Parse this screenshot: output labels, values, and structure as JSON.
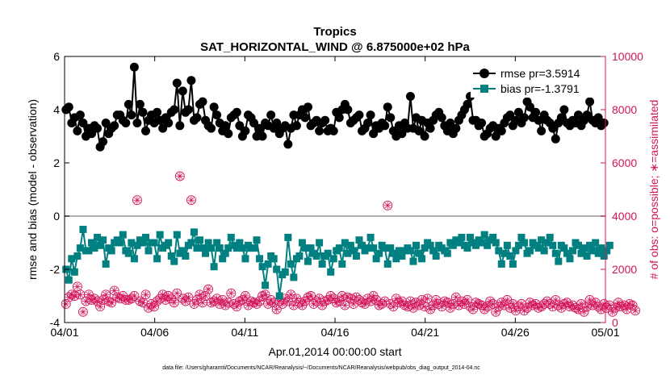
{
  "chart_data": {
    "type": "line",
    "title": "Tropics",
    "subtitle": "SAT_HORIZONTAL_WIND @ 6.875000e+02 hPa",
    "xlabel": "Apr.01,2014 00:00:00 start",
    "ylabel_left": "rmse and bias (model - observation)",
    "ylabel_right": "# of obs: o=possible; ∗=assimilated",
    "footnote": "data file: /Users/gharamti/Documents/NCAR/Reanalysis/~/Documents/NCAR/Reanalysis/webpub/obs_diag_output_2014-04.nc",
    "xlim": [
      0,
      30
    ],
    "ylim_left": [
      -4,
      6
    ],
    "ylim_right": [
      0,
      10000
    ],
    "x_ticks": [
      0,
      5,
      10,
      15,
      20,
      25,
      30
    ],
    "x_tick_labels": [
      "04/01",
      "04/06",
      "04/11",
      "04/16",
      "04/21",
      "04/26",
      "05/01"
    ],
    "y_ticks_left": [
      -4,
      -2,
      0,
      2,
      4,
      6
    ],
    "y_tick_labels_left": [
      "-4",
      "-2",
      "0",
      "2",
      "4",
      "6"
    ],
    "y_ticks_right": [
      0,
      2000,
      4000,
      6000,
      8000,
      10000
    ],
    "y_tick_labels_right": [
      "0",
      "2000",
      "4000",
      "6000",
      "8000",
      "10000"
    ],
    "zero_line": 0,
    "colors": {
      "rmse": "#000000",
      "bias": "#008080",
      "obs": "#d4145a",
      "zero": "#b0b0b0"
    },
    "series": [
      {
        "name": "rmse pr=3.5914",
        "axis": "left",
        "marker": "circle",
        "values": [
          4.0,
          4.1,
          3.5,
          3.7,
          3.2,
          3.8,
          3.5,
          3.0,
          3.3,
          3.1,
          3.4,
          3.3,
          2.6,
          2.8,
          3.5,
          3.1,
          3.3,
          3.4,
          3.8,
          3.8,
          3.6,
          3.5,
          4.2,
          3.8,
          5.6,
          3.5,
          4.2,
          3.9,
          3.2,
          3.6,
          3.8,
          3.5,
          3.9,
          3.6,
          3.3,
          3.7,
          3.5,
          3.9,
          4.0,
          5.0,
          3.4,
          4.7,
          3.9,
          4.0,
          5.1,
          3.6,
          3.7,
          4.2,
          4.3,
          3.6,
          3.4,
          3.3,
          4.1,
          3.8,
          3.5,
          3.2,
          3.4,
          3.1,
          3.7,
          3.8,
          3.9,
          3.4,
          3.0,
          3.2,
          3.8,
          3.7,
          3.5,
          3.0,
          3.3,
          3.0,
          3.5,
          3.4,
          3.8,
          3.3,
          3.5,
          3.1,
          3.3,
          3.4,
          2.7,
          3.3,
          3.8,
          3.4,
          3.8,
          4.0,
          3.7,
          4.1,
          3.4,
          3.5,
          3.6,
          3.2,
          3.5,
          3.6,
          3.2,
          3.3,
          3.2,
          3.9,
          3.7,
          4.0,
          4.2,
          4.0,
          3.5,
          3.6,
          3.7,
          3.8,
          3.2,
          3.3,
          3.5,
          3.8,
          3.1,
          3.4,
          3.3,
          3.5,
          3.4,
          4.1,
          3.7,
          3.2,
          3.0,
          3.4,
          3.1,
          3.5,
          3.3,
          4.5,
          3.3,
          3.7,
          3.2,
          3.6,
          3.0,
          3.5,
          3.3,
          3.6,
          3.8,
          3.9,
          3.7,
          3.4,
          3.2,
          3.5,
          3.1,
          3.3,
          3.6,
          3.8,
          4.0,
          4.2,
          4.5,
          3.6,
          3.6,
          3.4,
          3.5,
          3.0,
          3.1,
          3.3,
          3.4,
          3.0,
          3.3,
          3.2,
          3.5,
          3.7,
          3.8,
          3.4,
          3.6,
          3.9,
          3.5,
          3.7,
          4.3,
          4.1,
          3.7,
          3.9,
          3.6,
          3.2,
          3.8,
          3.6,
          3.5,
          3.3,
          2.9,
          3.5,
          3.7,
          4.0,
          3.5,
          3.4,
          3.6,
          3.5,
          3.8,
          3.4,
          3.6,
          3.8,
          4.3,
          3.6,
          3.5,
          3.7,
          3.4,
          3.5
        ]
      },
      {
        "name": "bias pr=-1.3791",
        "axis": "left",
        "marker": "square",
        "values": [
          -2.0,
          -2.4,
          -1.6,
          -2.1,
          -1.5,
          -1.2,
          -0.5,
          -1.3,
          -1.3,
          -1.0,
          -1.2,
          -0.8,
          -1.1,
          -0.9,
          -1.8,
          -1.2,
          -1.3,
          -1.0,
          -0.9,
          -1.0,
          -0.7,
          -1.3,
          -1.4,
          -1.0,
          -1.6,
          -1.1,
          -0.9,
          -1.0,
          -0.8,
          -1.3,
          -1.0,
          -1.0,
          -1.6,
          -0.7,
          -1.2,
          -1.1,
          -1.0,
          -1.5,
          -1.7,
          -0.7,
          -1.4,
          -1.3,
          -1.5,
          -1.1,
          -1.0,
          -0.6,
          -1.2,
          -0.9,
          -1.2,
          -1.4,
          -1.0,
          -1.2,
          -1.9,
          -1.0,
          -1.2,
          -1.6,
          -1.4,
          -1.2,
          -0.8,
          -1.1,
          -1.2,
          -1.0,
          -1.2,
          -1.6,
          -1.1,
          -1.2,
          -1.2,
          -0.9,
          -1.6,
          -1.9,
          -2.6,
          -1.8,
          -1.5,
          -1.6,
          -2.0,
          -3.0,
          -2.2,
          -2.1,
          -0.8,
          -1.8,
          -2.3,
          -1.6,
          -1.5,
          -1.0,
          -1.2,
          -1.7,
          -1.2,
          -1.4,
          -1.5,
          -1.0,
          -1.8,
          -1.5,
          -1.4,
          -2.1,
          -1.6,
          -1.3,
          -1.2,
          -1.8,
          -1.0,
          -1.4,
          -1.1,
          -1.3,
          -1.5,
          -0.9,
          -1.1,
          -1.3,
          -1.2,
          -0.8,
          -1.2,
          -1.6,
          -1.4,
          -1.1,
          -1.2,
          -1.8,
          -1.2,
          -1.4,
          -1.6,
          -1.3,
          -1.5,
          -1.3,
          -1.2,
          -1.3,
          -1.7,
          -1.1,
          -1.4,
          -1.6,
          -1.2,
          -1.0,
          -1.1,
          -1.3,
          -1.5,
          -1.1,
          -1.2,
          -1.3,
          -1.4,
          -1.0,
          -1.1,
          -0.9,
          -1.0,
          -0.8,
          -1.1,
          -1.2,
          -0.8,
          -1.0,
          -1.1,
          -0.9,
          -1.0,
          -0.7,
          -1.1,
          -0.9,
          -0.8,
          -1.0,
          -1.3,
          -1.8,
          -1.4,
          -1.1,
          -1.5,
          -1.8,
          -1.3,
          -1.1,
          -0.8,
          -1.0,
          -1.4,
          -1.3,
          -1.0,
          -1.1,
          -1.2,
          -0.9,
          -1.3,
          -1.0,
          -0.8,
          -1.1,
          -1.4,
          -1.7,
          -1.1,
          -1.2,
          -1.4,
          -1.6,
          -1.3,
          -1.0,
          -1.1,
          -1.4,
          -1.2,
          -1.5,
          -1.1,
          -1.3,
          -1.0,
          -1.4,
          -1.2,
          -1.5,
          -1.3,
          -1.1
        ]
      },
      {
        "name": "# of obs",
        "axis": "right",
        "marker": "circle-asterisk",
        "values": [
          700,
          950,
          1050,
          1000,
          1350,
          1050,
          400,
          800,
          1050,
          850,
          900,
          800,
          600,
          850,
          1050,
          800,
          750,
          1200,
          950,
          900,
          1000,
          850,
          850,
          900,
          1000,
          4600,
          800,
          750,
          1050,
          550,
          700,
          600,
          800,
          900,
          1050,
          850,
          1000,
          900,
          750,
          1100,
          5500,
          900,
          800,
          950,
          4600,
          700,
          850,
          1050,
          750,
          1000,
          1250,
          750,
          800,
          900,
          700,
          850,
          650,
          750,
          1100,
          700,
          600,
          800,
          850,
          1000,
          650,
          800,
          750,
          700,
          800,
          1000,
          1050,
          700,
          850,
          750,
          500,
          800,
          700,
          900,
          800,
          1050,
          650,
          900,
          750,
          650,
          800,
          950,
          1000,
          700,
          800,
          900,
          650,
          800,
          850,
          1000,
          900,
          750,
          800,
          1000,
          650,
          950,
          900,
          700,
          950,
          850,
          750,
          700,
          900,
          800,
          1000,
          850,
          650,
          700,
          800,
          4400,
          700,
          600,
          900,
          750,
          800,
          650,
          600,
          800,
          550,
          750,
          650,
          850,
          600,
          900,
          500,
          650,
          850,
          700,
          600,
          800,
          750,
          550,
          700,
          950,
          650,
          800,
          700,
          850,
          600,
          500,
          750,
          700,
          650,
          500,
          600,
          800,
          700,
          400,
          600,
          750,
          650,
          850,
          550,
          700,
          450,
          600,
          700,
          450,
          550,
          750,
          650,
          700,
          550,
          600,
          700,
          800,
          700,
          600,
          850,
          650,
          550,
          700,
          750,
          600,
          650,
          550,
          500,
          700,
          400,
          600,
          850,
          650,
          750,
          600,
          500,
          700,
          550,
          650,
          400,
          550,
          750,
          600,
          650,
          500,
          700,
          650,
          450
        ]
      }
    ],
    "legend": {
      "position": "top-right",
      "entries": [
        "rmse pr=3.5914",
        "bias pr=-1.3791"
      ]
    }
  }
}
